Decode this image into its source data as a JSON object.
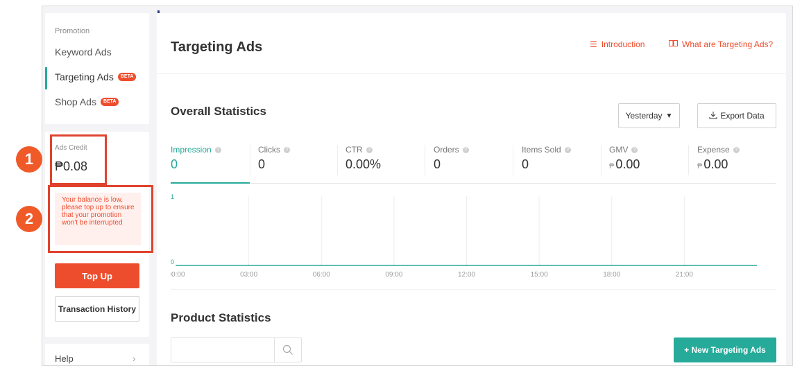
{
  "sidebar": {
    "promotion_title": "Promotion",
    "items": [
      {
        "label": "Keyword Ads",
        "badge": ""
      },
      {
        "label": "Targeting Ads",
        "badge": "BETA"
      },
      {
        "label": "Shop Ads",
        "badge": "BETA"
      }
    ],
    "ads_credit_label": "Ads Credit",
    "ads_credit_value": "₱0.08",
    "low_balance_warning": "Your balance is low, please top up to ensure that your promotion won't be interrupted",
    "top_up_label": "Top Up",
    "transaction_history_label": "Transaction History",
    "help_label": "Help"
  },
  "annotations": [
    "1",
    "2"
  ],
  "header": {
    "title": "Targeting Ads",
    "introduction_link": "Introduction",
    "what_are_link": "What are Targeting Ads?"
  },
  "overall": {
    "title": "Overall Statistics",
    "date_range": "Yesterday",
    "export_label": "Export Data",
    "metrics": [
      {
        "label": "Impression",
        "value": "0",
        "currency": ""
      },
      {
        "label": "Clicks",
        "value": "0",
        "currency": ""
      },
      {
        "label": "CTR",
        "value": "0.00%",
        "currency": ""
      },
      {
        "label": "Orders",
        "value": "0",
        "currency": ""
      },
      {
        "label": "Items Sold",
        "value": "0",
        "currency": ""
      },
      {
        "label": "GMV",
        "value": "0.00",
        "currency": "₱"
      },
      {
        "label": "Expense",
        "value": "0.00",
        "currency": "₱"
      }
    ]
  },
  "chart_data": {
    "type": "line",
    "x": [
      "00:00",
      "03:00",
      "06:00",
      "09:00",
      "12:00",
      "15:00",
      "18:00",
      "21:00"
    ],
    "series": [
      {
        "values": [
          0,
          0,
          0,
          0,
          0,
          0,
          0,
          0
        ]
      }
    ],
    "y_ticks": [
      "0",
      "1"
    ],
    "ylim": [
      0,
      1
    ],
    "grid": true,
    "color": "#26aa99"
  },
  "product": {
    "title": "Product Statistics",
    "search_placeholder": "",
    "new_button_label": "+ New Targeting Ads"
  },
  "colors": {
    "accent": "#ee4d2d",
    "primary": "#26aa99",
    "annotation": "#e0432d"
  }
}
